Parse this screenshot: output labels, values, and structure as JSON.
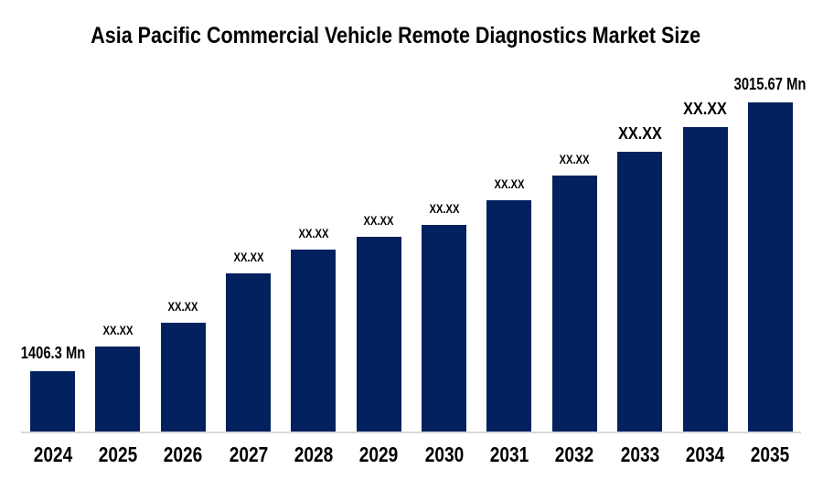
{
  "chart_data": {
    "type": "bar",
    "title": "Asia Pacific Commercial Vehicle Remote Diagnostics Market Size",
    "unit": "Mn",
    "categories": [
      "2024",
      "2025",
      "2026",
      "2027",
      "2028",
      "2029",
      "2030",
      "2031",
      "2032",
      "2033",
      "2034",
      "2035"
    ],
    "bar_labels": [
      "1406.3 Mn",
      "XX.XX",
      "XX.XX",
      "XX.XX",
      "XX.XX",
      "XX.XX",
      "XX.XX",
      "XX.XX",
      "XX.XX",
      "XX.XX",
      "XX.XX",
      "3015.67 Mn"
    ],
    "label_sizes": [
      "endpoint",
      "small",
      "small",
      "small",
      "small",
      "small",
      "small",
      "small",
      "small",
      "large",
      "large",
      "endpoint"
    ],
    "values_estimated": [
      1406.3,
      1554,
      1696,
      1992,
      2134,
      2211,
      2282,
      2430,
      2578,
      2720,
      2868,
      3015.67
    ],
    "known_values": {
      "2024": 1406.3,
      "2035": 3015.67
    },
    "values_masked_as": "XX.XX",
    "bar_color": "#02215E",
    "axis_line_color": "#D9D9D9",
    "text_color": "#000000",
    "xlabel": "",
    "ylabel": "",
    "y_axis": "hidden",
    "gridlines": false,
    "legend": "none"
  }
}
